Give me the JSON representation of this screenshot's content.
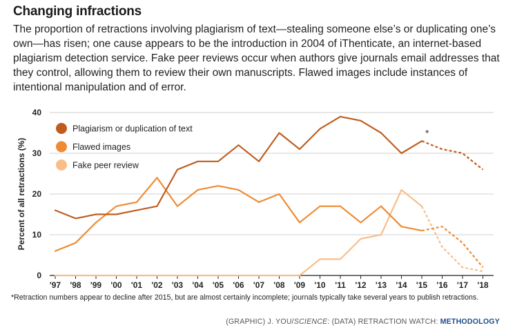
{
  "header": {
    "title": "Changing infractions",
    "description": "The proportion of retractions involving plagiarism of text—stealing someone else’s or duplicating one’s own—has risen; one cause appears to be the introduction in 2004 of iThenticate, an internet-based plagiarism detection service. Fake peer reviews occur when authors give journals email addresses that they control, allowing them to review their own manuscripts. Flawed images include instances of intentional manipulation and of error."
  },
  "chart_data": {
    "type": "line",
    "x": [
      "'97",
      "'98",
      "'99",
      "'00",
      "'01",
      "'02",
      "'03",
      "'04",
      "'05",
      "'06",
      "'07",
      "'08",
      "'09",
      "'10",
      "'11",
      "'12",
      "'13",
      "'14",
      "'15",
      "'16",
      "'17",
      "'18"
    ],
    "ylabel": "Percent of all retractions (%)",
    "ylim": [
      0,
      40
    ],
    "yticks": [
      0,
      10,
      20,
      30,
      40
    ],
    "grid": true,
    "legend_position": "top-left",
    "incomplete_after": "'15",
    "annotation": {
      "text": "*",
      "x": "'15",
      "series": 0
    },
    "series": [
      {
        "name": "Plagiarism or duplication of text",
        "color": "#bf5d1f",
        "values": [
          16,
          14,
          15,
          15,
          16,
          17,
          26,
          28,
          28,
          32,
          28,
          35,
          31,
          36,
          39,
          38,
          35,
          30,
          33,
          31,
          30,
          26
        ]
      },
      {
        "name": "Flawed images",
        "color": "#ef8a32",
        "values": [
          6,
          8,
          13,
          17,
          18,
          24,
          17,
          21,
          22,
          21,
          18,
          20,
          13,
          17,
          17,
          13,
          17,
          12,
          11,
          12,
          8,
          2
        ]
      },
      {
        "name": "Fake peer review",
        "color": "#f9bd89",
        "values": [
          0,
          0,
          0,
          0,
          0,
          0,
          0,
          0,
          0,
          0,
          0,
          0,
          0,
          4,
          4,
          9,
          10,
          21,
          17,
          7,
          2,
          1
        ]
      }
    ]
  },
  "footnote": "*Retraction numbers appear to decline after 2015, but are almost certainly incomplete; journals typically take several years to publish retractions.",
  "credit": {
    "part1": "(GRAPHIC) J. YOU/",
    "part2": "SCIENCE",
    "part3": ": (DATA) RETRACTION WATCH: ",
    "link": "METHODOLOGY"
  }
}
